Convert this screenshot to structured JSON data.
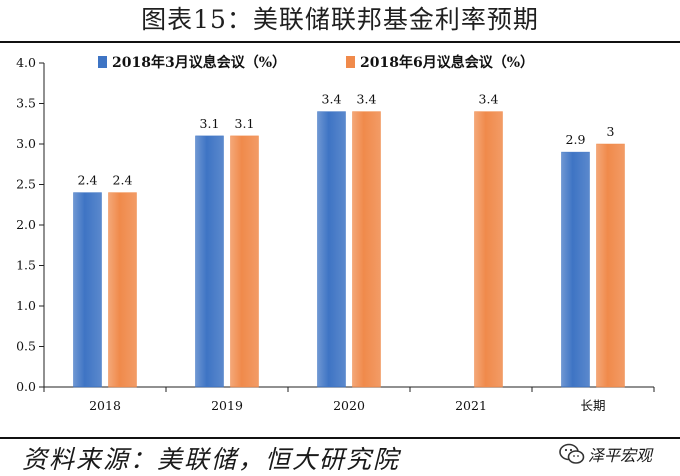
{
  "title": "图表15：美联储联邦基金利率预期",
  "footer": "资料来源：美联储，恒大研究院",
  "brand": {
    "name": "泽平宏观",
    "icon": "wechat-icon"
  },
  "chart_data": {
    "type": "bar",
    "categories": [
      "2018",
      "2019",
      "2020",
      "2021",
      "长期"
    ],
    "series": [
      {
        "name": "2018年3月议息会议（%）",
        "color": "#3E74C4",
        "values": [
          2.4,
          3.1,
          3.4,
          null,
          2.9
        ],
        "labels": [
          "2.4",
          "3.1",
          "3.4",
          "",
          "2.9"
        ]
      },
      {
        "name": "2018年6月议息会议（%）",
        "color": "#F08A4B",
        "values": [
          2.4,
          3.1,
          3.4,
          3.4,
          3.0
        ],
        "labels": [
          "2.4",
          "3.1",
          "3.4",
          "3.4",
          "3"
        ]
      }
    ],
    "ylim": [
      0,
      4
    ],
    "yticks": [
      "0.0",
      "0.5",
      "1.0",
      "1.5",
      "2.0",
      "2.5",
      "3.0",
      "3.5",
      "4.0"
    ],
    "legend_position": "top",
    "grid": false
  }
}
